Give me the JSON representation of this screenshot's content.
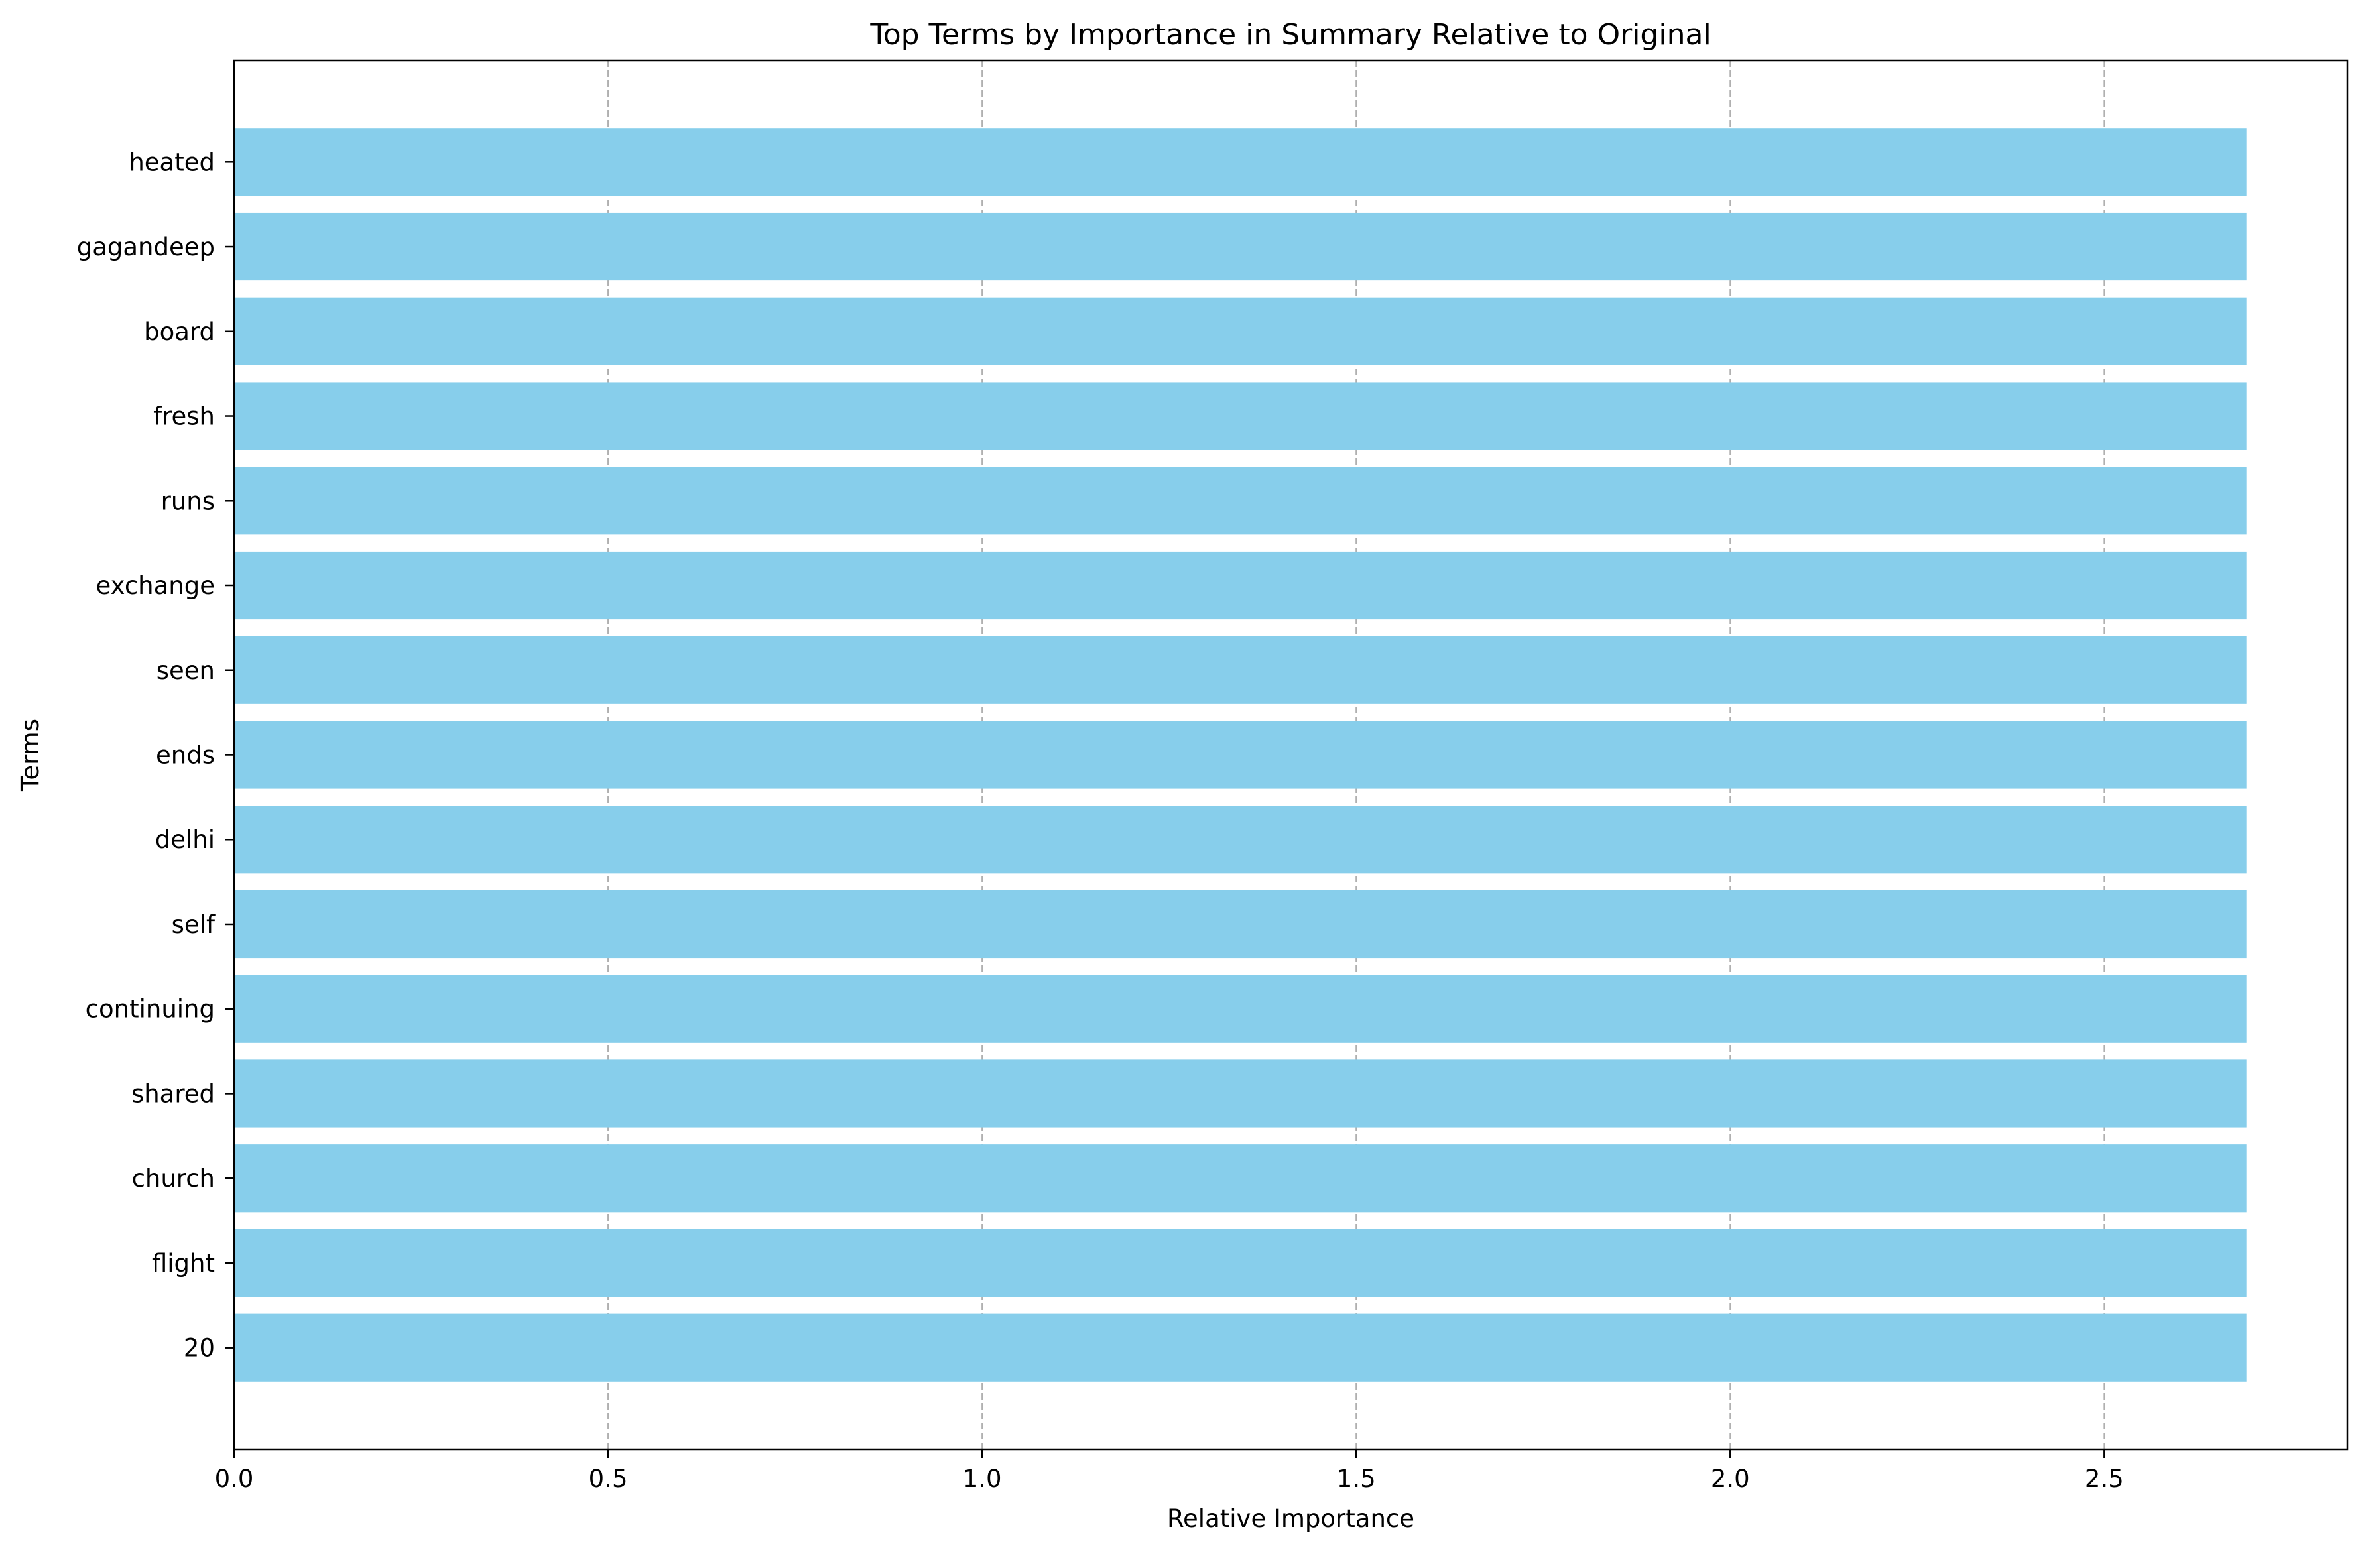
{
  "chart_data": {
    "type": "bar",
    "orientation": "horizontal",
    "title": "Top Terms by Importance in Summary Relative to Original",
    "xlabel": "Relative Importance",
    "ylabel": "Terms",
    "categories": [
      "20",
      "flight",
      "church",
      "shared",
      "continuing",
      "self",
      "delhi",
      "ends",
      "seen",
      "exchange",
      "runs",
      "fresh",
      "board",
      "gagandeep",
      "heated"
    ],
    "values": [
      2.69,
      2.69,
      2.69,
      2.69,
      2.69,
      2.69,
      2.69,
      2.69,
      2.69,
      2.69,
      2.69,
      2.69,
      2.69,
      2.69,
      2.69
    ],
    "xlim": [
      0.0,
      2.825
    ],
    "xticks": [
      0.0,
      0.5,
      1.0,
      1.5,
      2.0,
      2.5
    ],
    "xtick_labels": [
      "0.0",
      "0.5",
      "1.0",
      "1.5",
      "2.0",
      "2.5"
    ],
    "grid": "x-dashed",
    "bar_color": "#87CEEB",
    "grid_color": "#b0b0b0"
  }
}
